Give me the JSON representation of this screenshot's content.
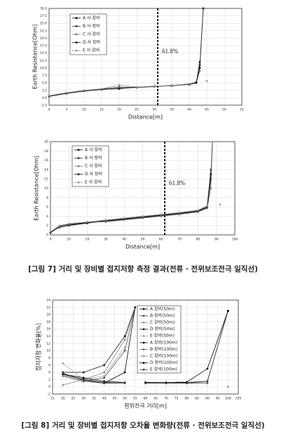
{
  "chart_data": [
    {
      "type": "line",
      "ylabel": "Earth Resistance[Ohm]",
      "xlabel": "Distance[m]",
      "annotation": "61.8%",
      "vline_x": 31,
      "x": [
        0,
        5,
        10,
        15,
        20,
        25,
        30,
        35,
        40,
        42,
        43,
        44,
        45
      ],
      "xlim": [
        0,
        55
      ],
      "xticks": [
        0,
        5,
        10,
        15,
        20,
        25,
        30,
        35,
        40,
        45,
        50,
        55
      ],
      "ylim": [
        -2.5,
        30
      ],
      "yticks": [
        -2.5,
        {
          "value": 0,
          "label": "0.0"
        },
        2.5,
        {
          "value": 5,
          "label": "5.0"
        },
        7.5,
        {
          "value": 10,
          "label": "10.0"
        },
        12.5,
        {
          "value": 15,
          "label": "15.0"
        },
        17.5,
        {
          "value": 20,
          "label": "20.0"
        },
        22.5,
        {
          "value": 25,
          "label": "25.0"
        },
        27.5,
        {
          "value": 30,
          "label": "30.0"
        }
      ],
      "grid": true,
      "series": [
        {
          "name": "A 사 장비",
          "color": "#000000",
          "values": [
            0.5,
            1.6,
            2.4,
            2.8,
            3.2,
            3.5,
            3.8,
            4.1,
            4.5,
            5,
            10,
            30,
            null
          ]
        },
        {
          "name": "B 사 장비",
          "color": "#333333",
          "values": [
            0.6,
            1.5,
            2.3,
            2.9,
            3.6,
            3.5,
            3.9,
            4.0,
            4.6,
            5.2,
            11,
            30,
            null
          ]
        },
        {
          "name": "C 사 장비",
          "color": "#777777",
          "values": [
            0.4,
            1.4,
            2.2,
            2.7,
            3.3,
            3.4,
            3.7,
            4.2,
            4.4,
            4.9,
            9,
            null,
            null
          ]
        },
        {
          "name": "D 사 장비",
          "color": "#1a1a1a",
          "values": [
            0.5,
            1.5,
            2.3,
            2.8,
            3.0,
            3.5,
            3.8,
            4.0,
            4.5,
            5.1,
            12,
            null,
            null
          ]
        },
        {
          "name": "E 사 장비",
          "color": "#999999",
          "values": [
            0.7,
            1.7,
            2.5,
            3.0,
            4.3,
            3.6,
            3.9,
            4.1,
            4.7,
            null,
            null,
            null,
            5.6
          ]
        }
      ]
    },
    {
      "type": "line",
      "ylabel": "Earth Resistance[Ohm]",
      "xlabel": "Distance[m]",
      "annotation": "61.8%",
      "vline_x": 62,
      "x": [
        0,
        5,
        10,
        20,
        30,
        40,
        50,
        60,
        70,
        80,
        85,
        87,
        88,
        92
      ],
      "xlim": [
        0,
        100
      ],
      "xticks": [
        0,
        10,
        20,
        30,
        40,
        50,
        60,
        70,
        80,
        90,
        100
      ],
      "ylim": [
        0,
        20
      ],
      "yticks": [
        0,
        2,
        4,
        6,
        8,
        10,
        12,
        14,
        16,
        18,
        20
      ],
      "grid": true,
      "series": [
        {
          "name": "A 사 장비",
          "color": "#000000",
          "values": [
            0.5,
            1.8,
            2.1,
            2.6,
            2.9,
            3.3,
            3.7,
            4.1,
            4.5,
            5.0,
            5.8,
            12,
            22,
            null
          ]
        },
        {
          "name": "B 사 장비",
          "color": "#333333",
          "values": [
            0.6,
            1.6,
            2.0,
            2.5,
            3.0,
            3.4,
            3.8,
            4.2,
            4.6,
            5.1,
            6.0,
            14,
            null,
            null
          ]
        },
        {
          "name": "C 사 장비",
          "color": "#777777",
          "values": [
            0.4,
            1.7,
            2.2,
            2.7,
            2.8,
            3.2,
            3.6,
            4.0,
            4.4,
            4.9,
            5.7,
            10,
            21,
            null
          ]
        },
        {
          "name": "D 사 장비",
          "color": "#1a1a1a",
          "values": [
            0.5,
            1.9,
            2.3,
            2.6,
            3.1,
            3.5,
            3.9,
            4.3,
            4.7,
            5.2,
            6.1,
            13,
            null,
            null
          ]
        },
        {
          "name": "E 사 장비",
          "color": "#999999",
          "values": [
            0.7,
            2.0,
            2.4,
            2.8,
            3.2,
            3.6,
            4.0,
            4.4,
            4.8,
            5.3,
            6.2,
            null,
            null,
            6.5
          ]
        }
      ]
    },
    {
      "type": "line",
      "ylabel": "접지저항 변화율[%]",
      "xlabel": "점위전극 거리[m]",
      "x": [
        20,
        30,
        40,
        50,
        55,
        60,
        70,
        80,
        90,
        100
      ],
      "xlim": [
        15,
        105
      ],
      "xticks": [
        15,
        20,
        25,
        30,
        35,
        40,
        45,
        50,
        55,
        60,
        65,
        70,
        75,
        80,
        85,
        90,
        95,
        100,
        105
      ],
      "ylim": [
        -2,
        24
      ],
      "yticks": [
        -2,
        0,
        2,
        4,
        6,
        8,
        10,
        12,
        14,
        16,
        18,
        20,
        22,
        24
      ],
      "grid": true,
      "series": [
        {
          "name": "A 장비(50m)",
          "color": "#000000",
          "values": [
            3.5,
            2,
            1,
            4,
            22,
            null,
            null,
            null,
            null,
            null
          ]
        },
        {
          "name": "B 장비(50m)",
          "color": "#555555",
          "values": [
            3,
            1.5,
            2.5,
            10,
            22,
            null,
            null,
            null,
            null,
            null
          ]
        },
        {
          "name": "C 장비(50m)",
          "color": "#888888",
          "values": [
            0.5,
            2,
            4,
            13,
            22,
            null,
            null,
            null,
            null,
            null
          ]
        },
        {
          "name": "D 장비(50m)",
          "color": "#222222",
          "values": [
            4,
            4,
            6,
            14,
            22,
            null,
            null,
            null,
            null,
            null
          ]
        },
        {
          "name": "E 장비(50m)",
          "color": "#aaaaaa",
          "values": [
            6.5,
            2,
            3,
            11,
            null,
            null,
            null,
            null,
            null,
            null
          ]
        },
        {
          "name": "A 장비(100m)",
          "color": "#111111",
          "values": [
            3.5,
            2,
            1.2,
            1,
            null,
            1.2,
            1,
            1.2,
            1.5,
            21
          ]
        },
        {
          "name": "B 장비(100m)",
          "color": "#666666",
          "values": [
            3,
            1.5,
            1,
            1,
            null,
            1,
            1,
            1,
            1,
            null
          ]
        },
        {
          "name": "C 장비(100m)",
          "color": "#999999",
          "values": [
            3.2,
            1.8,
            1.1,
            1,
            null,
            1.1,
            1,
            1,
            null,
            0
          ]
        },
        {
          "name": "D 장비(100m)",
          "color": "#000000",
          "values": [
            3.5,
            2.5,
            1.5,
            1.2,
            null,
            1.2,
            1.2,
            1.3,
            5,
            21
          ]
        },
        {
          "name": "E 장비(100m)",
          "color": "#444444",
          "values": [
            3.8,
            1.8,
            1,
            1.1,
            null,
            1,
            1,
            1,
            1.5,
            null
          ]
        }
      ]
    }
  ],
  "captions": [
    "[그림 7] 거리 및 장비별 접지저항 측정 결과(전류 · 전위보조전극 일직선)",
    "[그림 8] 거리 및 장비별 접지저항 오차율 변화량(전류 · 전위보조전극 일직선)"
  ]
}
